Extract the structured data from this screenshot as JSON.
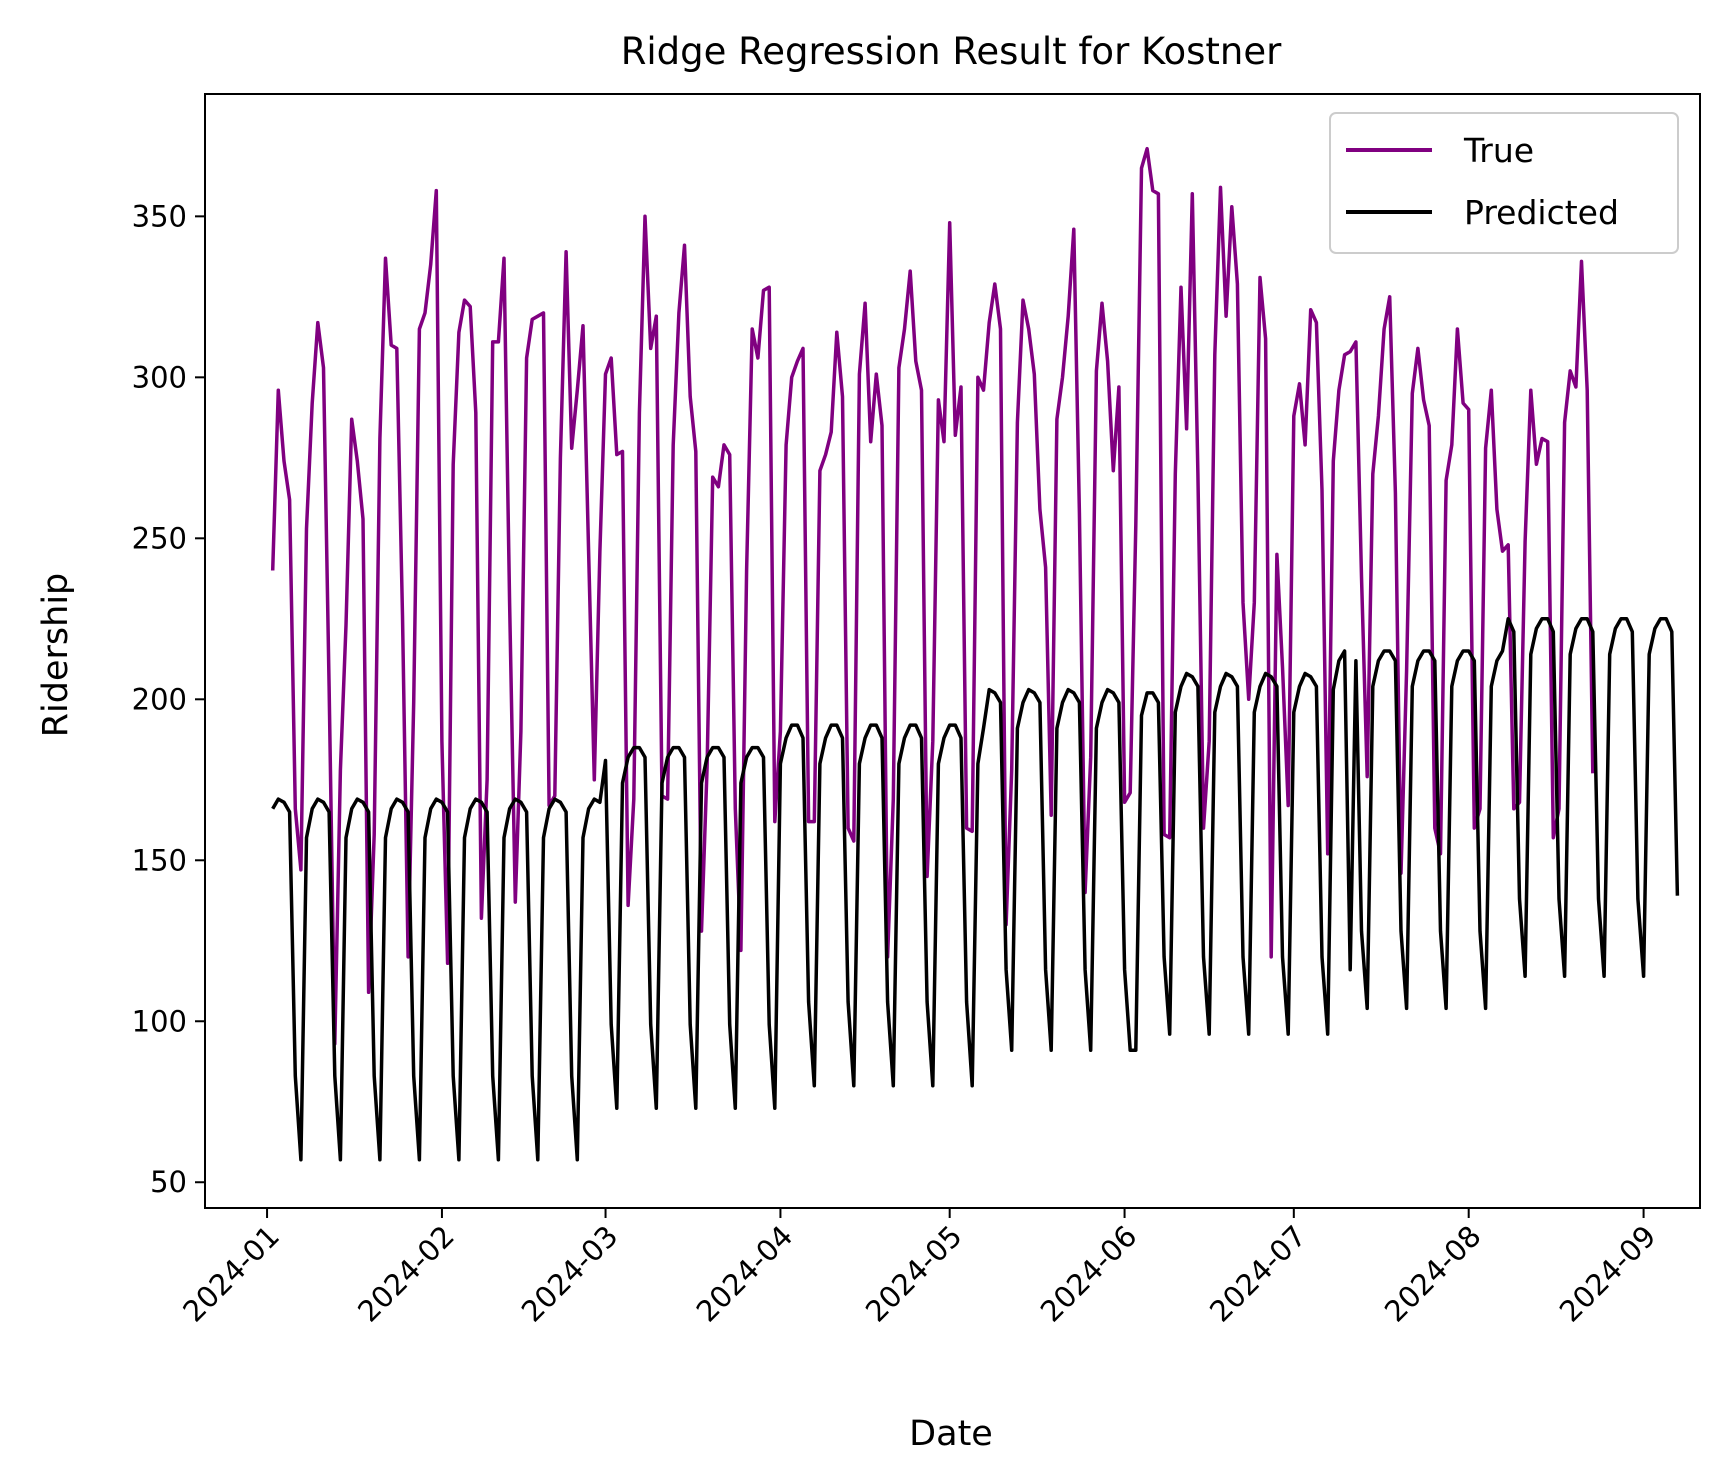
{
  "chart_data": {
    "type": "line",
    "title": "Ridge Regression Result for Kostner",
    "xlabel": "Date",
    "ylabel": "Ridership",
    "x_start": "2024-01-02",
    "x_end": "2024-08-31",
    "xlim": [
      "2023-12-21",
      "2024-09-11"
    ],
    "ylim": [
      42,
      388
    ],
    "x_ticks": [
      "2024-01",
      "2024-02",
      "2024-03",
      "2024-04",
      "2024-05",
      "2024-06",
      "2024-07",
      "2024-08",
      "2024-09"
    ],
    "y_ticks": [
      50,
      100,
      150,
      200,
      250,
      300,
      350
    ],
    "grid": false,
    "legend": {
      "position": "upper right"
    },
    "series": [
      {
        "name": "True",
        "color": "#800080",
        "values": [
          240,
          296,
          274,
          262,
          166,
          147,
          253,
          292,
          317,
          303,
          204,
          93,
          178,
          223,
          287,
          274,
          256,
          109,
          158,
          281,
          337,
          310,
          309,
          226,
          120,
          199,
          315,
          320,
          335,
          358,
          187,
          118,
          273,
          314,
          324,
          322,
          289,
          132,
          175,
          311,
          311,
          337,
          230,
          137,
          190,
          306,
          318,
          319,
          320,
          167,
          170,
          275,
          339,
          278,
          296,
          316,
          246,
          175,
          246,
          301,
          306,
          276,
          277,
          136,
          169,
          289,
          350,
          309,
          319,
          170,
          169,
          279,
          320,
          341,
          294,
          277,
          128,
          179,
          269,
          266,
          279,
          276,
          166,
          122,
          240,
          315,
          306,
          327,
          328,
          162,
          190,
          279,
          300,
          305,
          309,
          162,
          162,
          271,
          276,
          283,
          314,
          294,
          160,
          156,
          301,
          323,
          280,
          301,
          285,
          120,
          169,
          303,
          315,
          333,
          305,
          296,
          145,
          187,
          293,
          280,
          348,
          282,
          297,
          160,
          159,
          300,
          296,
          317,
          329,
          315,
          130,
          178,
          286,
          324,
          315,
          301,
          259,
          241,
          164,
          287,
          300,
          319,
          346,
          258,
          140,
          182,
          302,
          323,
          305,
          271,
          297,
          168,
          171,
          254,
          365,
          371,
          358,
          357,
          158,
          157,
          270,
          328,
          284,
          357,
          270,
          160,
          187,
          307,
          359,
          319,
          353,
          329,
          230,
          200,
          230,
          331,
          312,
          120,
          245,
          210,
          167,
          288,
          298,
          279,
          321,
          317,
          265,
          152,
          274,
          296,
          307,
          308,
          311,
          238,
          176,
          270,
          288,
          315,
          325,
          264,
          146,
          209,
          295,
          309,
          293,
          285,
          160,
          152,
          268,
          279,
          315,
          292,
          290,
          160,
          166,
          278,
          296,
          259,
          246,
          248,
          166,
          168,
          249,
          296,
          273,
          281,
          280,
          157,
          166,
          286,
          302,
          297,
          336,
          296,
          177
        ]
      },
      {
        "name": "Predicted",
        "color": "#000000",
        "values": [
          166,
          169,
          168,
          165,
          83,
          57,
          157,
          166,
          169,
          168,
          165,
          83,
          57,
          157,
          166,
          169,
          168,
          165,
          83,
          57,
          157,
          166,
          169,
          168,
          165,
          83,
          57,
          157,
          166,
          169,
          168,
          165,
          83,
          57,
          157,
          166,
          169,
          168,
          165,
          83,
          57,
          157,
          166,
          169,
          168,
          165,
          83,
          57,
          157,
          166,
          169,
          168,
          165,
          83,
          57,
          157,
          166,
          169,
          168,
          181,
          99,
          73,
          174,
          182,
          185,
          185,
          182,
          99,
          73,
          174,
          182,
          185,
          185,
          182,
          99,
          73,
          174,
          182,
          185,
          185,
          182,
          99,
          73,
          174,
          182,
          185,
          185,
          182,
          99,
          73,
          180,
          188,
          192,
          192,
          188,
          106,
          80,
          180,
          188,
          192,
          192,
          188,
          106,
          80,
          180,
          188,
          192,
          192,
          188,
          106,
          80,
          180,
          188,
          192,
          192,
          188,
          106,
          80,
          180,
          188,
          192,
          192,
          188,
          106,
          80,
          180,
          191,
          203,
          202,
          199,
          116,
          91,
          191,
          199,
          203,
          202,
          199,
          116,
          91,
          191,
          199,
          203,
          202,
          199,
          116,
          91,
          191,
          199,
          203,
          202,
          199,
          116,
          91,
          91,
          195,
          202,
          202,
          199,
          120,
          96,
          196,
          204,
          208,
          207,
          204,
          120,
          96,
          196,
          204,
          208,
          207,
          204,
          120,
          96,
          196,
          204,
          208,
          207,
          204,
          120,
          96,
          196,
          204,
          208,
          207,
          204,
          120,
          96,
          203,
          212,
          215,
          116,
          212,
          128,
          104,
          204,
          212,
          215,
          215,
          212,
          128,
          104,
          204,
          212,
          215,
          215,
          212,
          128,
          104,
          204,
          212,
          215,
          215,
          212,
          128,
          104,
          204,
          212,
          215,
          225,
          221,
          138,
          114,
          214,
          222,
          225,
          225,
          221,
          138,
          114,
          214,
          222,
          225,
          225,
          221,
          138,
          114,
          214,
          222,
          225,
          225,
          221,
          138,
          114,
          214,
          222,
          225,
          225,
          221,
          139
        ]
      }
    ]
  }
}
